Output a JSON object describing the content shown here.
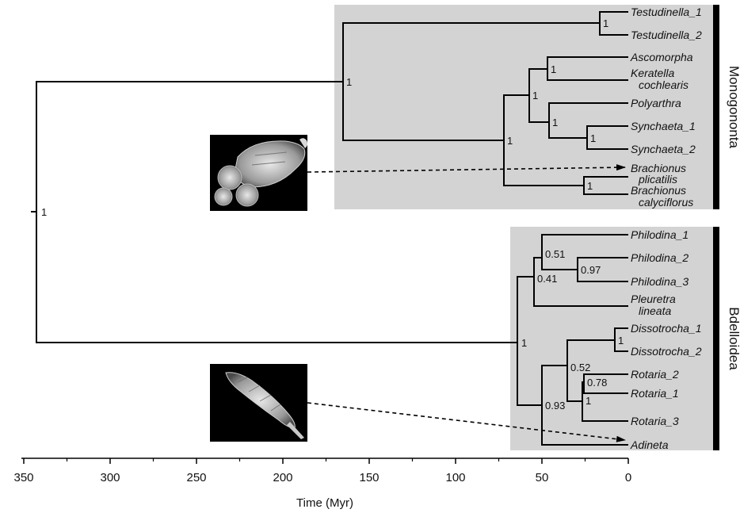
{
  "axis": {
    "title": "Time (Myr)",
    "ticks": [
      "350",
      "300",
      "250",
      "200",
      "150",
      "100",
      "50",
      "0"
    ]
  },
  "clades": {
    "monogononta": "Monogononta",
    "bdelloidea": "Bdelloidea"
  },
  "taxa": {
    "testudinella_1": "Testudinella_1",
    "testudinella_2": "Testudinella_2",
    "ascomorpha": "Ascomorpha",
    "keratella_1": "Keratella",
    "keratella_2": "cochlearis",
    "polyarthra": "Polyarthra",
    "synchaeta_1": "Synchaeta_1",
    "synchaeta_2": "Synchaeta_2",
    "b_plicatilis_1": "Brachionus",
    "b_plicatilis_2": "plicatilis",
    "b_calyciflorus_1": "Brachionus",
    "b_calyciflorus_2": "calyciflorus",
    "philodina_1": "Philodina_1",
    "philodina_2": "Philodina_2",
    "philodina_3": "Philodina_3",
    "pleuretra_1": "Pleuretra",
    "pleuretra_2": "lineata",
    "dissotrocha_1": "Dissotrocha_1",
    "dissotrocha_2": "Dissotrocha_2",
    "rotaria_2": "Rotaria_2",
    "rotaria_1": "Rotaria_1",
    "rotaria_3": "Rotaria_3",
    "adineta": "Adineta"
  },
  "support": {
    "root": "1",
    "monogononta": "1",
    "testudinella": "1",
    "mono_inner": "1",
    "asco_pol_syn": "1",
    "asco_ker": "1",
    "pol_syn": "1",
    "synchaeta": "1",
    "brachionus": "1",
    "bdelloidea": "1",
    "philodinid": "0.41",
    "philodina": "0.51",
    "philodina_23": "0.97",
    "other_bdell": "0.93",
    "diss_rot": "0.52",
    "dissotrocha": "1",
    "rotaria_a": "0.78",
    "rotaria_b": "1"
  },
  "colors": {
    "clade_box": "#d3d3d3",
    "clade_bar": "#000000",
    "branch": "#000000"
  },
  "images": {
    "brachionus_photo": "SEM micrograph of a monogonont rotifer (Brachionus) carrying eggs",
    "adineta_photo": "SEM micrograph of a bdelloid rotifer (Adineta)"
  }
}
